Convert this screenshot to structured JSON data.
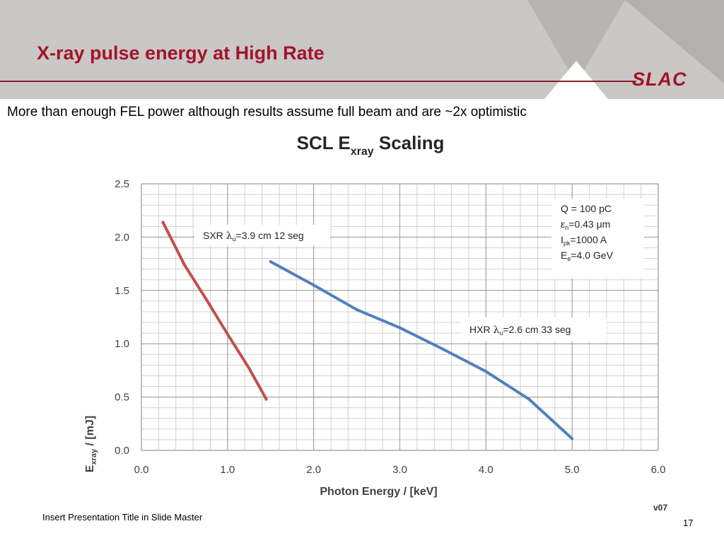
{
  "slide": {
    "title": "X-ray pulse energy at High Rate",
    "logo": "SLAC",
    "subtitle": "More than enough FEL power although results assume full beam and are ~2x optimistic",
    "footer": "Insert Presentation Title in Slide Master",
    "page_number": "17",
    "version": "v07"
  },
  "colors": {
    "title": "#a3132b",
    "header_band": "#c9c8c6",
    "sxr": "#c0504d",
    "hxr": "#4f81bd"
  },
  "chart_data": {
    "type": "line",
    "title": "SCL E",
    "title_sub": "xray",
    "title_suffix": " Scaling",
    "xlabel": "Photon Energy / [keV]",
    "ylabel": "E",
    "ylabel_sub": "xray",
    "ylabel_suffix": " / [mJ]",
    "xlim": [
      0,
      6
    ],
    "ylim": [
      0,
      2.5
    ],
    "x_ticks": [
      "0.0",
      "1.0",
      "2.0",
      "3.0",
      "4.0",
      "5.0",
      "6.0"
    ],
    "y_ticks": [
      "0.0",
      "0.5",
      "1.0",
      "1.5",
      "2.0",
      "2.5"
    ],
    "grid": true,
    "series": [
      {
        "name": "SXR",
        "color": "#c0504d",
        "x": [
          0.25,
          0.5,
          0.75,
          1.0,
          1.25,
          1.45
        ],
        "y": [
          2.14,
          1.74,
          1.42,
          1.09,
          0.77,
          0.48
        ]
      },
      {
        "name": "HXR",
        "color": "#4f81bd",
        "x": [
          1.5,
          2.0,
          2.5,
          3.0,
          3.5,
          4.0,
          4.5,
          5.0
        ],
        "y": [
          1.77,
          1.55,
          1.32,
          1.15,
          0.95,
          0.74,
          0.48,
          0.11
        ]
      }
    ],
    "annotations": {
      "sxr": {
        "name": "SXR",
        "lambda_sub": "u",
        "value": "=3.9 cm 12 seg"
      },
      "hxr": {
        "name": "HXR",
        "lambda_sub": "u",
        "value": "=2.6 cm 33 seg"
      },
      "params": [
        {
          "sym": "Q",
          "sub": "",
          "text": " = 100 pC"
        },
        {
          "sym": "ε",
          "sub": "n",
          "text": "=0.43 μm"
        },
        {
          "sym": "I",
          "sub": "pk",
          "text": "=1000 A"
        },
        {
          "sym": "E",
          "sub": "e",
          "text": "=4.0 GeV"
        }
      ]
    }
  }
}
